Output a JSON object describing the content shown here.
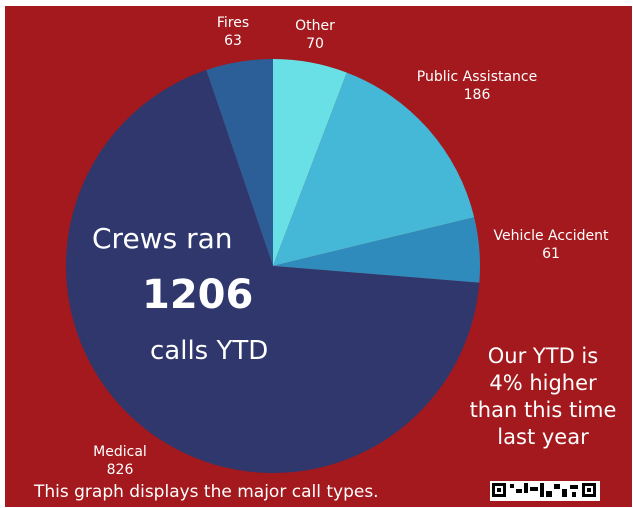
{
  "chart_data": {
    "type": "pie",
    "total": 1206,
    "slices": [
      {
        "label": "Other",
        "value": 70,
        "color": "#69e0e6"
      },
      {
        "label": "Public Assistance",
        "value": 186,
        "color": "#45b8d8"
      },
      {
        "label": "Vehicle Accident",
        "value": 61,
        "color": "#2e8bbc"
      },
      {
        "label": "Medical",
        "value": 826,
        "color": "#2f376d"
      },
      {
        "label": "Fires",
        "value": 63,
        "color": "#2c5f98"
      }
    ]
  },
  "overlay": {
    "line1": "Crews ran",
    "count": "1206",
    "line3": "calls YTD",
    "yoy": "Our YTD is 4% higher than this time last year"
  },
  "caption": "This graph displays the major call types.",
  "colors": {
    "background": "#a3191d",
    "border": "#ffffff",
    "text": "#ffffff"
  }
}
